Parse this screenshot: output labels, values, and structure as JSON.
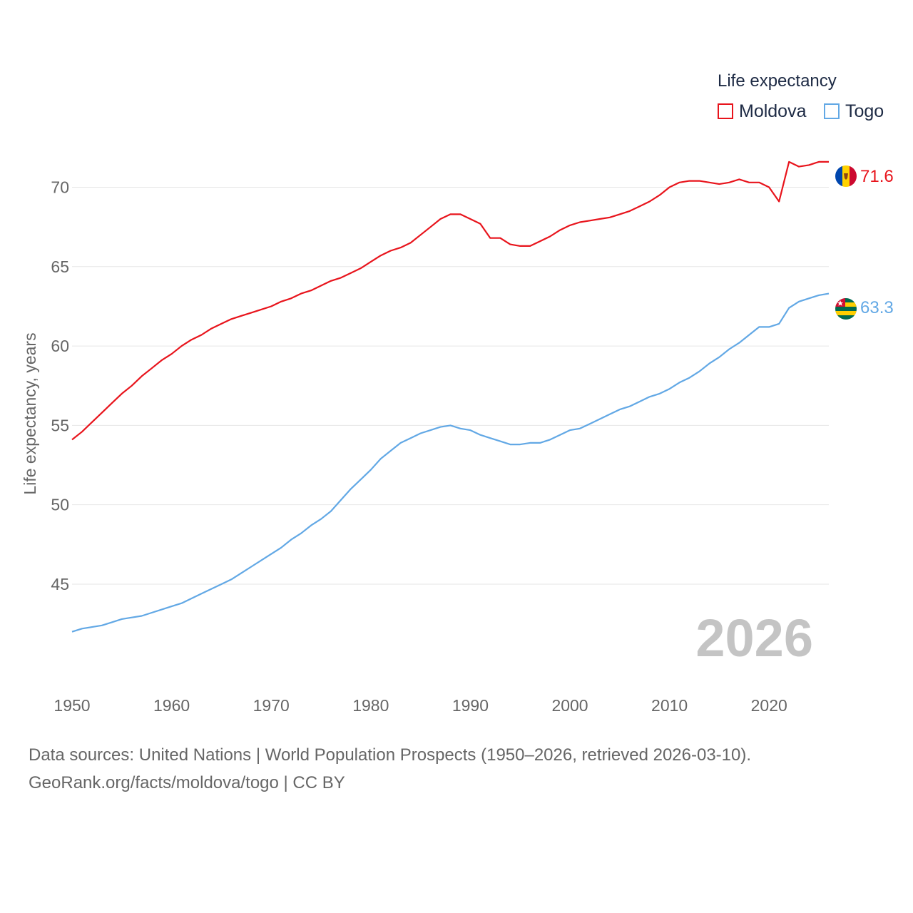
{
  "legend": {
    "title": "Life expectancy",
    "items": [
      {
        "label": "Moldova",
        "color": "#e8141c"
      },
      {
        "label": "Togo",
        "color": "#62a8e5"
      }
    ]
  },
  "watermark_year": "2026",
  "footer": {
    "line1": "Data sources: United Nations | World Population Prospects (1950–2026, retrieved 2026-03-10).",
    "line2": "GeoRank.org/facts/moldova/togo | CC BY"
  },
  "chart_data": {
    "type": "line",
    "title": "Life expectancy",
    "xlabel": "",
    "ylabel": "Life expectancy, years",
    "xlim": [
      1950,
      2026
    ],
    "ylim": [
      41.0,
      72.0
    ],
    "x_ticks": [
      1950,
      1960,
      1970,
      1980,
      1990,
      2000,
      2010,
      2020
    ],
    "y_ticks": [
      45,
      50,
      55,
      60,
      65,
      70
    ],
    "grid": true,
    "legend_position": "top-right",
    "series": [
      {
        "name": "Moldova",
        "color": "#e8141c",
        "end_label": "71.6",
        "points": [
          [
            1950,
            54.1
          ],
          [
            1951,
            54.6
          ],
          [
            1952,
            55.2
          ],
          [
            1953,
            55.8
          ],
          [
            1954,
            56.4
          ],
          [
            1955,
            57.0
          ],
          [
            1956,
            57.5
          ],
          [
            1957,
            58.1
          ],
          [
            1958,
            58.6
          ],
          [
            1959,
            59.1
          ],
          [
            1960,
            59.5
          ],
          [
            1961,
            60.0
          ],
          [
            1962,
            60.4
          ],
          [
            1963,
            60.7
          ],
          [
            1964,
            61.1
          ],
          [
            1965,
            61.4
          ],
          [
            1966,
            61.7
          ],
          [
            1967,
            61.9
          ],
          [
            1968,
            62.1
          ],
          [
            1969,
            62.3
          ],
          [
            1970,
            62.5
          ],
          [
            1971,
            62.8
          ],
          [
            1972,
            63.0
          ],
          [
            1973,
            63.3
          ],
          [
            1974,
            63.5
          ],
          [
            1975,
            63.8
          ],
          [
            1976,
            64.1
          ],
          [
            1977,
            64.3
          ],
          [
            1978,
            64.6
          ],
          [
            1979,
            64.9
          ],
          [
            1980,
            65.3
          ],
          [
            1981,
            65.7
          ],
          [
            1982,
            66.0
          ],
          [
            1983,
            66.2
          ],
          [
            1984,
            66.5
          ],
          [
            1985,
            67.0
          ],
          [
            1986,
            67.5
          ],
          [
            1987,
            68.0
          ],
          [
            1988,
            68.3
          ],
          [
            1989,
            68.3
          ],
          [
            1990,
            68.0
          ],
          [
            1991,
            67.7
          ],
          [
            1992,
            66.8
          ],
          [
            1993,
            66.8
          ],
          [
            1994,
            66.4
          ],
          [
            1995,
            66.3
          ],
          [
            1996,
            66.3
          ],
          [
            1997,
            66.6
          ],
          [
            1998,
            66.9
          ],
          [
            1999,
            67.3
          ],
          [
            2000,
            67.6
          ],
          [
            2001,
            67.8
          ],
          [
            2002,
            67.9
          ],
          [
            2003,
            68.0
          ],
          [
            2004,
            68.1
          ],
          [
            2005,
            68.3
          ],
          [
            2006,
            68.5
          ],
          [
            2007,
            68.8
          ],
          [
            2008,
            69.1
          ],
          [
            2009,
            69.5
          ],
          [
            2010,
            70.0
          ],
          [
            2011,
            70.3
          ],
          [
            2012,
            70.4
          ],
          [
            2013,
            70.4
          ],
          [
            2014,
            70.3
          ],
          [
            2015,
            70.2
          ],
          [
            2016,
            70.3
          ],
          [
            2017,
            70.5
          ],
          [
            2018,
            70.3
          ],
          [
            2019,
            70.3
          ],
          [
            2020,
            70.0
          ],
          [
            2021,
            69.1
          ],
          [
            2022,
            71.6
          ],
          [
            2023,
            71.3
          ],
          [
            2024,
            71.4
          ],
          [
            2025,
            71.6
          ],
          [
            2026,
            71.6
          ]
        ]
      },
      {
        "name": "Togo",
        "color": "#62a8e5",
        "end_label": "63.3",
        "points": [
          [
            1950,
            42.0
          ],
          [
            1951,
            42.2
          ],
          [
            1952,
            42.3
          ],
          [
            1953,
            42.4
          ],
          [
            1954,
            42.6
          ],
          [
            1955,
            42.8
          ],
          [
            1956,
            42.9
          ],
          [
            1957,
            43.0
          ],
          [
            1958,
            43.2
          ],
          [
            1959,
            43.4
          ],
          [
            1960,
            43.6
          ],
          [
            1961,
            43.8
          ],
          [
            1962,
            44.1
          ],
          [
            1963,
            44.4
          ],
          [
            1964,
            44.7
          ],
          [
            1965,
            45.0
          ],
          [
            1966,
            45.3
          ],
          [
            1967,
            45.7
          ],
          [
            1968,
            46.1
          ],
          [
            1969,
            46.5
          ],
          [
            1970,
            46.9
          ],
          [
            1971,
            47.3
          ],
          [
            1972,
            47.8
          ],
          [
            1973,
            48.2
          ],
          [
            1974,
            48.7
          ],
          [
            1975,
            49.1
          ],
          [
            1976,
            49.6
          ],
          [
            1977,
            50.3
          ],
          [
            1978,
            51.0
          ],
          [
            1979,
            51.6
          ],
          [
            1980,
            52.2
          ],
          [
            1981,
            52.9
          ],
          [
            1982,
            53.4
          ],
          [
            1983,
            53.9
          ],
          [
            1984,
            54.2
          ],
          [
            1985,
            54.5
          ],
          [
            1986,
            54.7
          ],
          [
            1987,
            54.9
          ],
          [
            1988,
            55.0
          ],
          [
            1989,
            54.8
          ],
          [
            1990,
            54.7
          ],
          [
            1991,
            54.4
          ],
          [
            1992,
            54.2
          ],
          [
            1993,
            54.0
          ],
          [
            1994,
            53.8
          ],
          [
            1995,
            53.8
          ],
          [
            1996,
            53.9
          ],
          [
            1997,
            53.9
          ],
          [
            1998,
            54.1
          ],
          [
            1999,
            54.4
          ],
          [
            2000,
            54.7
          ],
          [
            2001,
            54.8
          ],
          [
            2002,
            55.1
          ],
          [
            2003,
            55.4
          ],
          [
            2004,
            55.7
          ],
          [
            2005,
            56.0
          ],
          [
            2006,
            56.2
          ],
          [
            2007,
            56.5
          ],
          [
            2008,
            56.8
          ],
          [
            2009,
            57.0
          ],
          [
            2010,
            57.3
          ],
          [
            2011,
            57.7
          ],
          [
            2012,
            58.0
          ],
          [
            2013,
            58.4
          ],
          [
            2014,
            58.9
          ],
          [
            2015,
            59.3
          ],
          [
            2016,
            59.8
          ],
          [
            2017,
            60.2
          ],
          [
            2018,
            60.7
          ],
          [
            2019,
            61.2
          ],
          [
            2020,
            61.2
          ],
          [
            2021,
            61.4
          ],
          [
            2022,
            62.4
          ],
          [
            2023,
            62.8
          ],
          [
            2024,
            63.0
          ],
          [
            2025,
            63.2
          ],
          [
            2026,
            63.3
          ]
        ]
      }
    ]
  }
}
